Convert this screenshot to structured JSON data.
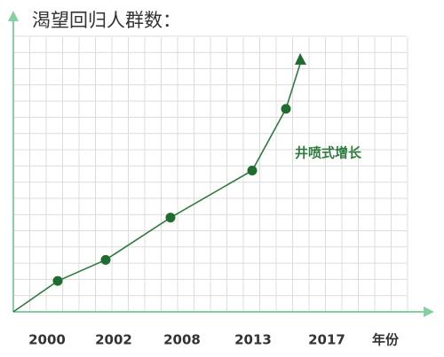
{
  "chart_data": {
    "type": "line",
    "title": "渴望回归人群数：",
    "x_label": "年份",
    "annotation": "井喷式增长",
    "categories": [
      "2000",
      "2002",
      "2008",
      "2013",
      "2017"
    ],
    "values": [
      1.9,
      3.2,
      5.8,
      8.7,
      12.5
    ],
    "color": "#2f7a3e",
    "ylim": [
      0,
      18
    ]
  }
}
